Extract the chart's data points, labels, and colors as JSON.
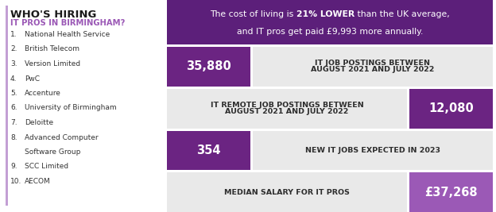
{
  "title_bold": "WHO'S HIRING",
  "title_sub": "IT PROS IN BIRMINGHAM?",
  "companies": [
    "National Health Service",
    "British Telecom",
    "Version Limited",
    "PwC",
    "Accenture",
    "University of Birmingham",
    "Deloitte",
    "Advanced Computer",
    "Software Group",
    "SCC Limited",
    "AECOM"
  ],
  "company_indices": [
    1,
    2,
    3,
    4,
    5,
    6,
    7,
    8,
    0,
    9,
    10
  ],
  "top_banner_text1": "The cost of living is ",
  "top_banner_bold": "21% LOWER",
  "top_banner_text2": " than the UK average,",
  "top_banner_line2": "and IT pros get paid £9,993 more annually.",
  "rows": [
    {
      "value": "35,880",
      "label_lines": [
        "IT JOB POSTINGS BETWEEN",
        "AUGUST 2021 AND JULY 2022"
      ],
      "value_left": true,
      "bg_value": "#6b2482",
      "bg_label": "#e9e9e9"
    },
    {
      "value": "12,080",
      "label_lines": [
        "IT REMOTE JOB POSTINGS BETWEEN",
        "AUGUST 2021 AND JULY 2022"
      ],
      "value_left": false,
      "bg_value": "#6b2482",
      "bg_label": "#e9e9e9"
    },
    {
      "value": "354",
      "label_lines": [
        "NEW IT JOBS EXPECTED IN 2023"
      ],
      "value_left": true,
      "bg_value": "#6b2482",
      "bg_label": "#e9e9e9"
    },
    {
      "value": "£37,268",
      "label_lines": [
        "MEDIAN SALARY FOR IT PROS"
      ],
      "value_left": false,
      "bg_value": "#9b59b6",
      "bg_label": "#e9e9e9"
    }
  ],
  "color_title_bold": "#1a1a1a",
  "color_title_sub": "#9b59b6",
  "color_bg": "#ffffff",
  "left_bar_color": "#c39fd4",
  "top_banner_bg": "#5c1f7a"
}
